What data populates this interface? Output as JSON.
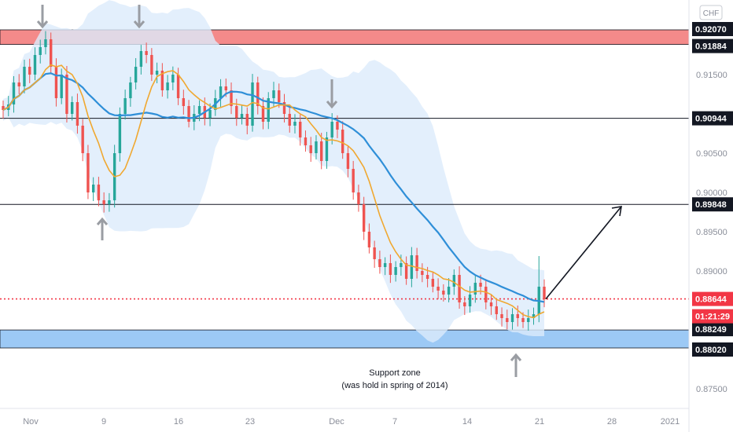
{
  "chart_data": {
    "type": "candlestick",
    "currency": "CHF",
    "y_axis": {
      "ylim": [
        0.8725,
        0.9245
      ],
      "tick_labels": [
        "0.91500",
        "0.90500",
        "0.90000",
        "0.89500",
        "0.89000",
        "0.87500"
      ]
    },
    "x_axis": {
      "tick_labels": [
        "Nov",
        "9",
        "16",
        "23",
        "Dec",
        "7",
        "14",
        "21",
        "28",
        "2021"
      ]
    },
    "zones": [
      {
        "name": "resistance-zone",
        "from": 0.91884,
        "to": 0.9207,
        "color": "#f48a8a"
      },
      {
        "name": "support-zone",
        "from": 0.8802,
        "to": 0.88249,
        "color": "#9cc9f5"
      }
    ],
    "levels": [
      {
        "value": 0.9207,
        "label": "0.92070"
      },
      {
        "value": 0.91884,
        "label": "0.91884"
      },
      {
        "value": 0.90944,
        "label": "0.90944"
      },
      {
        "value": 0.89848,
        "label": "0.89848"
      },
      {
        "value": 0.88249,
        "label": "0.88249"
      },
      {
        "value": 0.8802,
        "label": "0.88020"
      }
    ],
    "current_price": {
      "value": 0.88644,
      "label": "0.88644",
      "timer": "01:21:29",
      "color": "#f23645"
    },
    "annotations": {
      "support_line1": "Support zone",
      "support_line2": "(was hold in spring of 2014)"
    },
    "colors": {
      "up": "#26a69a",
      "down": "#ef5350",
      "ma_fast": "#f0a830",
      "ma_slow": "#2f8fd8",
      "band": "#dcebfb"
    },
    "closes": [
      0.9105,
      0.9112,
      0.914,
      0.9135,
      0.916,
      0.915,
      0.9175,
      0.9185,
      0.9195,
      0.916,
      0.912,
      0.915,
      0.91,
      0.9115,
      0.9085,
      0.905,
      0.9,
      0.901,
      0.899,
      0.8985,
      0.899,
      0.905,
      0.91,
      0.912,
      0.914,
      0.916,
      0.918,
      0.9175,
      0.915,
      0.9155,
      0.913,
      0.914,
      0.915,
      0.912,
      0.911,
      0.909,
      0.91,
      0.911,
      0.9095,
      0.9105,
      0.912,
      0.9135,
      0.913,
      0.911,
      0.9095,
      0.91,
      0.9085,
      0.914,
      0.911,
      0.909,
      0.912,
      0.913,
      0.9115,
      0.91,
      0.9085,
      0.909,
      0.907,
      0.906,
      0.905,
      0.9065,
      0.904,
      0.907,
      0.909,
      0.908,
      0.905,
      0.903,
      0.9,
      0.8985,
      0.895,
      0.893,
      0.8915,
      0.8905,
      0.891,
      0.8895,
      0.8905,
      0.891,
      0.889,
      0.892,
      0.89,
      0.8895,
      0.889,
      0.888,
      0.8875,
      0.887,
      0.888,
      0.8895,
      0.886,
      0.8855,
      0.887,
      0.8885,
      0.888,
      0.886,
      0.8855,
      0.8845,
      0.884,
      0.8835,
      0.8845,
      0.884,
      0.8835,
      0.884,
      0.8845,
      0.888,
      0.8864
    ]
  }
}
